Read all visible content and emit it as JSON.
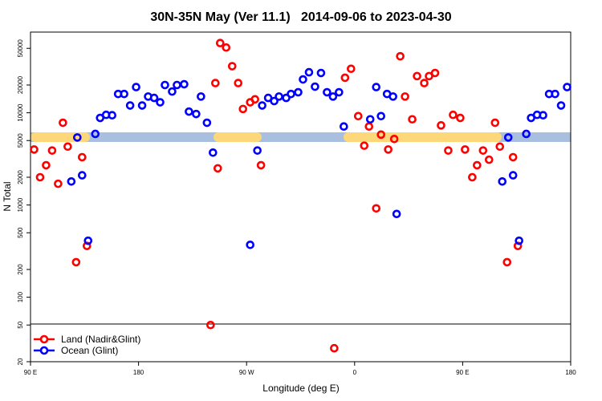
{
  "chart_data": {
    "type": "scatter",
    "title": "30N-35N May (Ver 11.1)   2014-09-06 to 2023-04-30",
    "xlabel": "Longitude (deg E)",
    "ylabel": "N Total",
    "xlim": [
      90,
      540
    ],
    "xticks": [
      {
        "value": 90,
        "label": "90 E"
      },
      180,
      {
        "value": 270,
        "label": "90 W"
      },
      {
        "value": 360,
        "label": "0"
      },
      {
        "value": 450,
        "label": "90 E"
      },
      {
        "value": 540,
        "label": "180"
      }
    ],
    "ylim": [
      20,
      75000
    ],
    "yscale": "log",
    "yticks": [
      20,
      50,
      100,
      200,
      500,
      1000,
      2000,
      5000,
      10000,
      20000,
      50000
    ],
    "legend": "lower left",
    "series": [
      {
        "name": "Land (Nadir&Glint)",
        "color": "#ff0000",
        "x": [
          93,
          98,
          103,
          108,
          113,
          117,
          121,
          128,
          133,
          137,
          240,
          244,
          246,
          248,
          253,
          258,
          263,
          267,
          273,
          277,
          282,
          343,
          352,
          357,
          363,
          368,
          372,
          378,
          382,
          388,
          393,
          398,
          402,
          408,
          412,
          418,
          422,
          427,
          432,
          438,
          442,
          448,
          452,
          458,
          462,
          467,
          472,
          477,
          481,
          487,
          492,
          496
        ],
        "values": [
          4000,
          2000,
          2700,
          3900,
          1700,
          7800,
          4300,
          240,
          3300,
          360,
          50,
          21000,
          2500,
          57000,
          51000,
          32000,
          21000,
          11000,
          13000,
          14000,
          2700,
          28,
          24000,
          30000,
          9200,
          4400,
          7100,
          920,
          5800,
          4000,
          5200,
          41000,
          15000,
          8500,
          25000,
          21000,
          25000,
          27000,
          7300,
          3900,
          9500,
          8800,
          4000,
          2000,
          2700,
          3900,
          3100,
          7800,
          4300,
          240,
          3300,
          360
        ]
      },
      {
        "name": "Ocean (Glint)",
        "color": "#0000ff",
        "x": [
          124,
          129,
          133,
          138,
          144,
          148,
          153,
          158,
          163,
          168,
          173,
          178,
          183,
          188,
          193,
          198,
          202,
          208,
          212,
          218,
          222,
          228,
          232,
          237,
          242,
          273,
          279,
          283,
          288,
          293,
          297,
          303,
          307,
          313,
          317,
          322,
          327,
          332,
          337,
          342,
          347,
          351,
          373,
          378,
          382,
          387,
          392,
          395,
          483,
          488,
          492,
          497,
          503,
          507,
          512,
          517,
          522,
          527,
          532,
          537
        ],
        "values": [
          1800,
          5400,
          2100,
          410,
          5900,
          8800,
          9500,
          9400,
          16000,
          16000,
          12000,
          19000,
          12000,
          15000,
          14500,
          13000,
          20000,
          17000,
          20000,
          20400,
          10300,
          9700,
          15000,
          7800,
          3700,
          370,
          3900,
          12000,
          14500,
          13400,
          15000,
          14500,
          16000,
          16700,
          23000,
          27500,
          19200,
          27000,
          16700,
          15000,
          16700,
          7100,
          8500,
          19000,
          9200,
          16000,
          15000,
          800,
          1800,
          5400,
          2100,
          410,
          5900,
          8800,
          9500,
          9400,
          16000,
          16000,
          12000,
          19000
        ]
      }
    ]
  }
}
